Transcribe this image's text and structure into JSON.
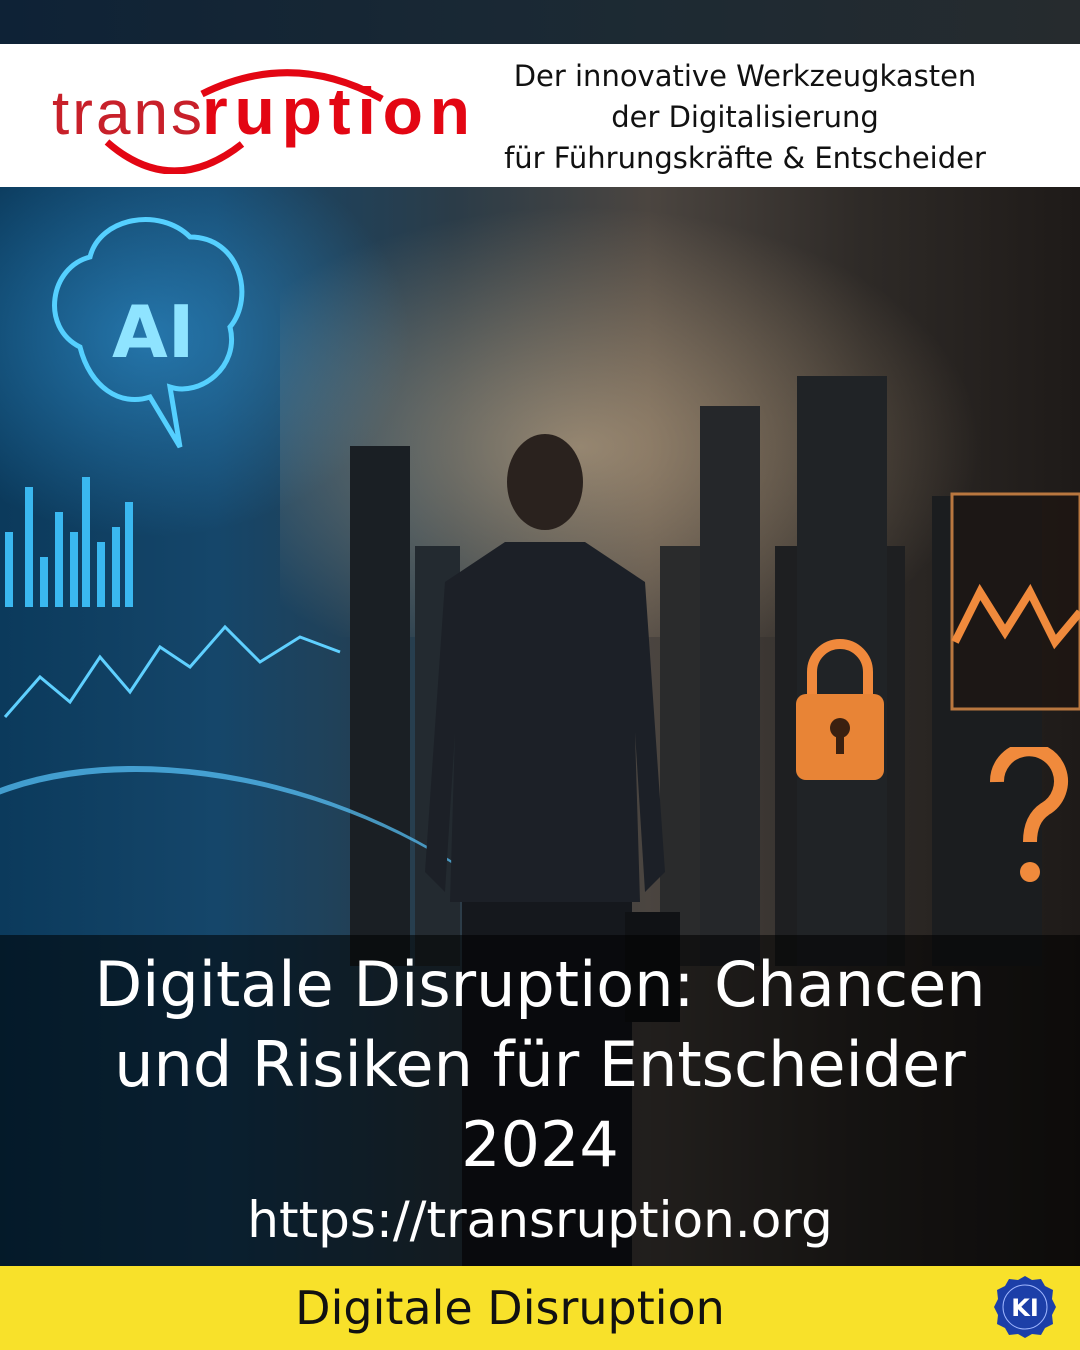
{
  "header": {
    "logo_text": "transruption",
    "tagline": [
      "Der innovative Werkzeugkasten",
      "der Digitalisierung",
      "für Führungskräfte & Entscheider"
    ]
  },
  "scene": {
    "ai_label": "AI",
    "icons": [
      "brain-icon",
      "lock-icon",
      "question-mark-icon",
      "bar-chart-icon",
      "line-chart-icon"
    ],
    "colors": {
      "left": "#1fa8ff",
      "right": "#f08a3c"
    }
  },
  "main": {
    "title_lines": [
      "Digitale Disruption: Chancen",
      "und Risiken für Entscheider",
      "2024"
    ],
    "url": "https://transruption.org"
  },
  "footer": {
    "label": "Digitale Disruption",
    "badge_text": "KI",
    "background": "#f8e12a"
  },
  "brand_color": "#e30613"
}
